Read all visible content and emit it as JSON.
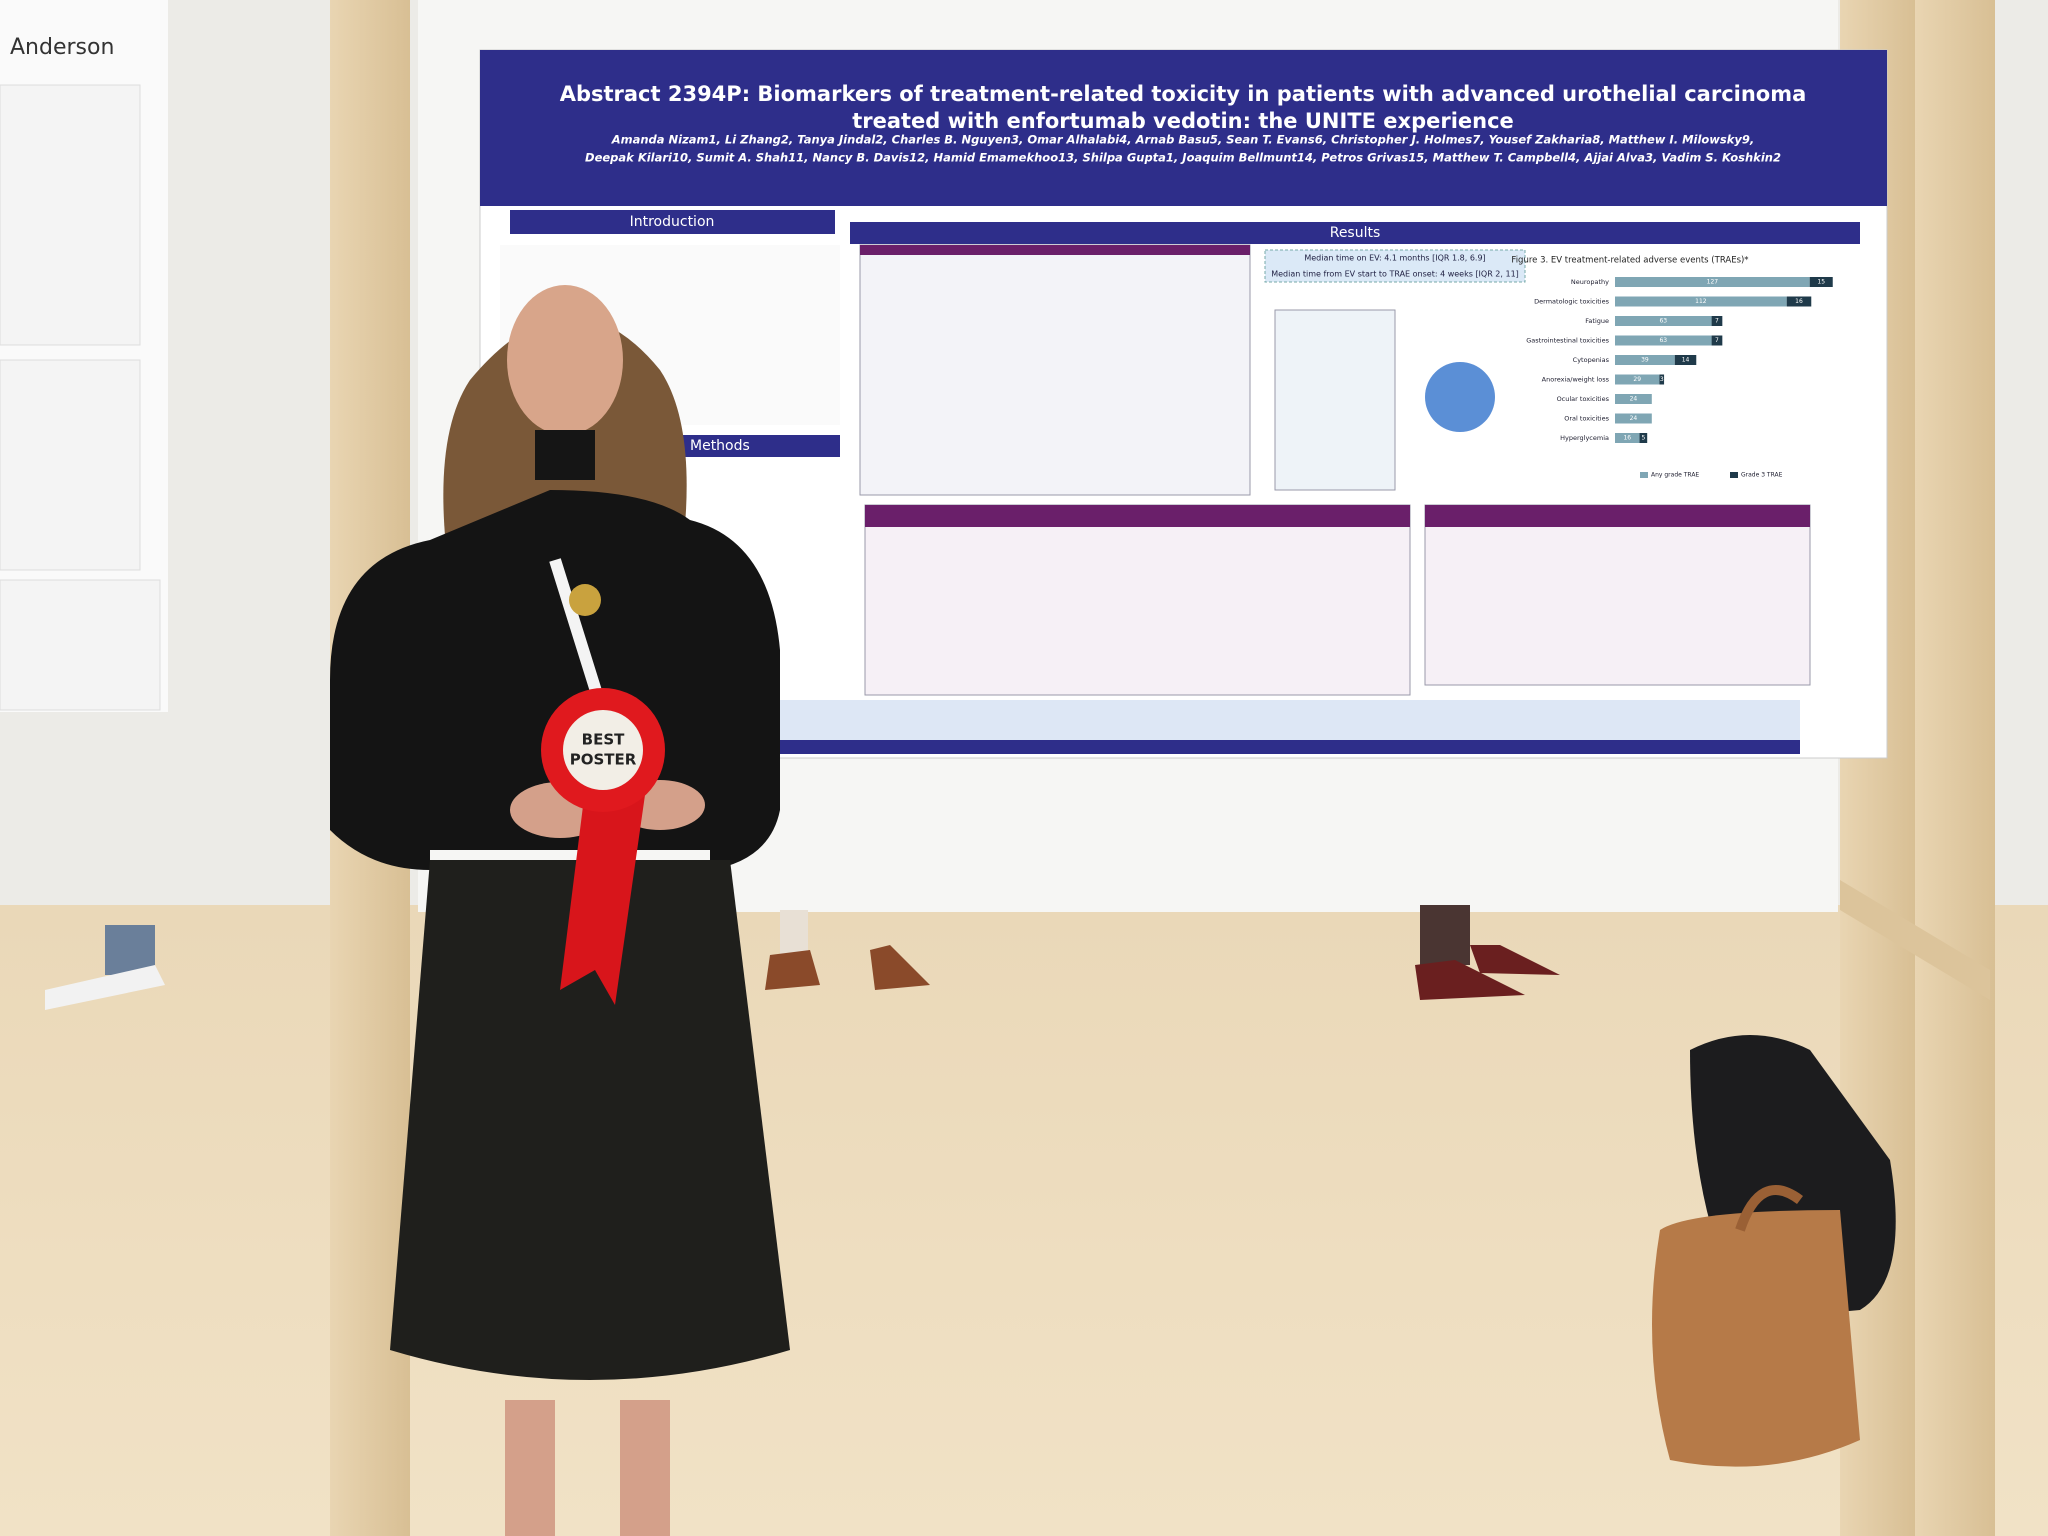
{
  "poster": {
    "title_lines": [
      "Abstract 2394P: Biomarkers of treatment-related toxicity in patients with advanced urothelial carcinoma",
      "treated with enfortumab vedotin: the UNITE experience"
    ],
    "authors": [
      "Amanda Nizam1, Li Zhang2, Tanya Jindal2, Charles B. Nguyen3, Omar Alhalabi4, Arnab Basu5, Sean T. Evans6, Christopher J. Holmes7, Yousef Zakharia8, Matthew I. Milowsky9,",
      "Deepak Kilari10, Sumit A. Shah11, Nancy B. Davis12, Hamid Emamekhoo13, Shilpa Gupta1, Joaquim Bellmunt14, Petros Grivas15, Matthew T. Campbell4, Ajjai Alva3, Vadim S. Koshkin2"
    ],
    "sections": [
      "Introduction",
      "Methods",
      "Results"
    ],
    "result_boxes": [
      "Median time on EV: 4.1 months [IQR 1.8, 6.9]",
      "Median time from EV start to TRAE onset: 4 weeks [IQR 2, 11]"
    ],
    "figure3": {
      "title": "Figure 3. EV treatment-related adverse events (TRAEs)*",
      "categories": [
        "Neuropathy",
        "Dermatologic toxicities",
        "Fatigue",
        "Gastrointestinal toxicities",
        "Cytopenias",
        "Anorexia/weight loss",
        "Ocular toxicities",
        "Oral toxicities",
        "Hyperglycemia"
      ],
      "series": [
        {
          "name": "Any grade TRAE",
          "color": "#7fa6b4",
          "values": [
            127,
            112,
            63,
            63,
            39,
            29,
            24,
            24,
            16
          ]
        },
        {
          "name": "Grade 3 TRAE",
          "color": "#1f3a4a",
          "values": [
            15,
            16,
            7,
            7,
            14,
            3,
            null,
            null,
            5
          ]
        }
      ],
      "xlim": [
        0,
        150
      ]
    }
  },
  "rosette": [
    "BEST",
    "POSTER"
  ],
  "side_poster": "Anderson"
}
